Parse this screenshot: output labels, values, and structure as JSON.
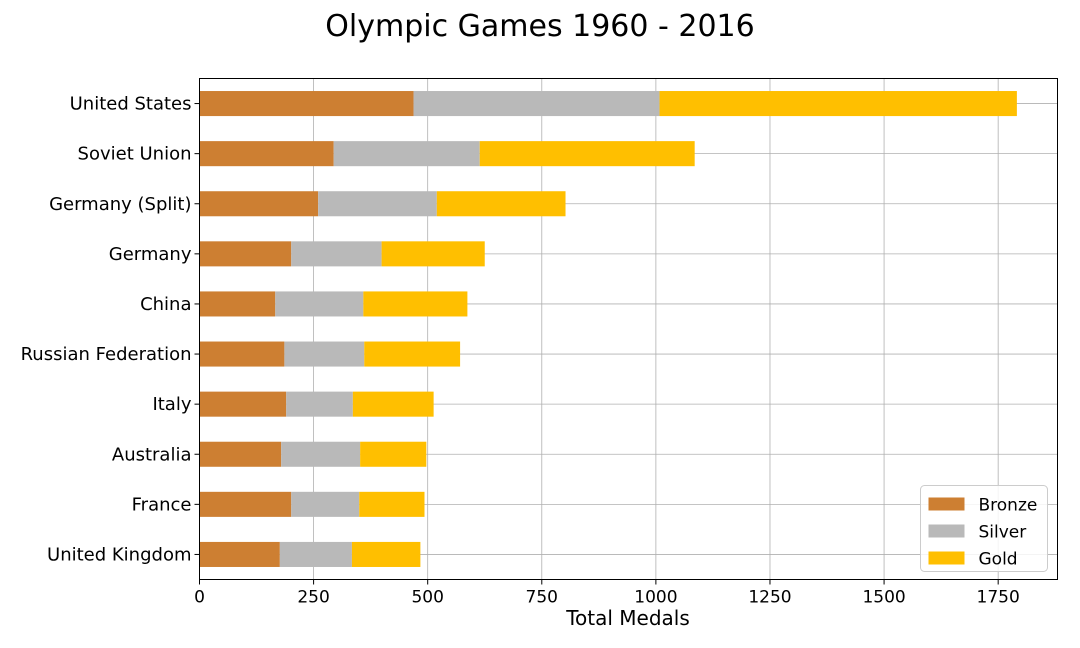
{
  "chart_data": {
    "type": "bar",
    "orientation": "horizontal",
    "stacked": true,
    "title": "Olympic Games 1960 - 2016",
    "xlabel": "Total Medals",
    "ylabel": "",
    "xlim": [
      0,
      1880
    ],
    "xticks": [
      0,
      250,
      500,
      750,
      1000,
      1250,
      1500,
      1750
    ],
    "grid": true,
    "legend_position": "bottom-right",
    "categories": [
      "United States",
      "Soviet Union",
      "Germany (Split)",
      "Germany",
      "China",
      "Russian Federation",
      "Italy",
      "Australia",
      "France",
      "United Kingdom"
    ],
    "series": [
      {
        "name": "Bronze",
        "color": "#cd7f32",
        "values": [
          469,
          294,
          260,
          201,
          166,
          186,
          190,
          179,
          201,
          176
        ]
      },
      {
        "name": "Silver",
        "color": "#b9b9b9",
        "values": [
          539,
          320,
          260,
          198,
          193,
          175,
          146,
          173,
          149,
          158
        ]
      },
      {
        "name": "Gold",
        "color": "#ffbf00",
        "values": [
          783,
          471,
          282,
          226,
          228,
          210,
          177,
          145,
          143,
          150
        ]
      }
    ]
  }
}
